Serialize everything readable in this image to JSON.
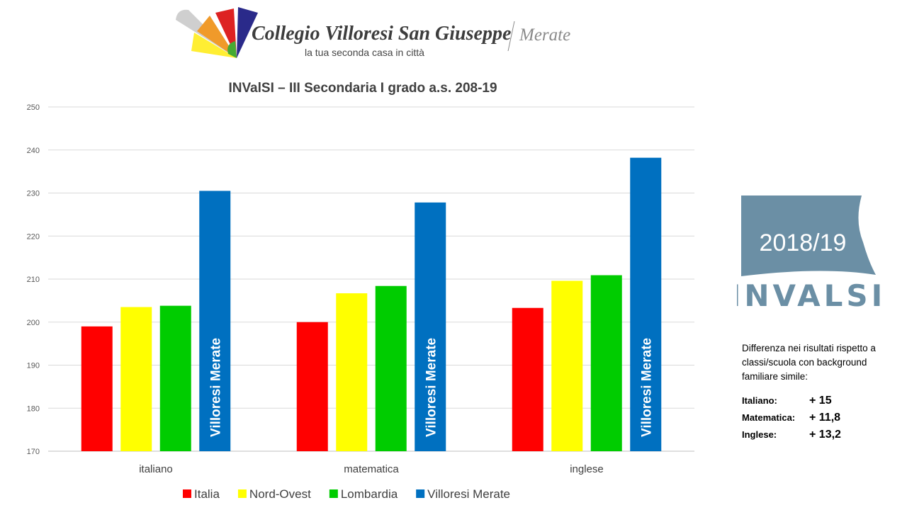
{
  "logo": {
    "name": "Collegio Villoresi San Giuseppe",
    "city": "Merate",
    "tagline": "la tua seconda casa in città"
  },
  "badge": {
    "year": "2018/19",
    "brand": "INVALSI"
  },
  "side_note": {
    "text": "Differenza nei risultati rispetto a classi/scuola con background familiare simile:",
    "differences": [
      {
        "label": "Italiano:",
        "value": "+ 15"
      },
      {
        "label": "Matematica:",
        "value": "+ 11,8"
      },
      {
        "label": "Inglese:",
        "value": "+ 13,2"
      }
    ]
  },
  "chart_data": {
    "type": "bar",
    "title": "INValSI – III Secondaria I grado a.s. 208-19",
    "categories": [
      "italiano",
      "matematica",
      "inglese"
    ],
    "ylim": [
      170,
      250
    ],
    "yticks": [
      170,
      180,
      190,
      200,
      210,
      220,
      230,
      240,
      250
    ],
    "grid": true,
    "legend": "bottom",
    "bar_label": "Villoresi Merate",
    "series": [
      {
        "name": "Italia",
        "color": "#ff0000",
        "values": [
          199,
          200,
          203.3
        ]
      },
      {
        "name": "Nord-Ovest",
        "color": "#ffff00",
        "values": [
          203.5,
          206.7,
          209.6
        ]
      },
      {
        "name": "Lombardia",
        "color": "#00cc00",
        "values": [
          203.8,
          208.4,
          210.9
        ]
      },
      {
        "name": "Villoresi Merate",
        "color": "#0070c0",
        "values": [
          230.5,
          227.8,
          238.2
        ]
      }
    ]
  }
}
